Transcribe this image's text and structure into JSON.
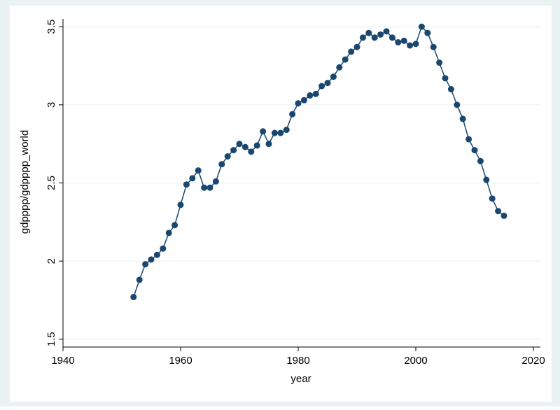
{
  "chart_data": {
    "type": "line",
    "x_label": "year",
    "y_label": "gdpppp/gdpppp_world",
    "x": [
      1952,
      1953,
      1954,
      1955,
      1956,
      1957,
      1958,
      1959,
      1960,
      1961,
      1962,
      1963,
      1964,
      1965,
      1966,
      1967,
      1968,
      1969,
      1970,
      1971,
      1972,
      1973,
      1974,
      1975,
      1976,
      1977,
      1978,
      1979,
      1980,
      1981,
      1982,
      1983,
      1984,
      1985,
      1986,
      1987,
      1988,
      1989,
      1990,
      1991,
      1992,
      1993,
      1994,
      1995,
      1996,
      1997,
      1998,
      1999,
      2000,
      2001,
      2002,
      2003,
      2004,
      2005,
      2006,
      2007,
      2008,
      2009,
      2010,
      2011,
      2012,
      2013,
      2014,
      2015
    ],
    "values": [
      1.77,
      1.88,
      1.98,
      2.01,
      2.04,
      2.08,
      2.18,
      2.23,
      2.36,
      2.49,
      2.53,
      2.58,
      2.47,
      2.47,
      2.51,
      2.62,
      2.67,
      2.71,
      2.75,
      2.73,
      2.7,
      2.74,
      2.83,
      2.75,
      2.82,
      2.82,
      2.84,
      2.94,
      3.01,
      3.03,
      3.06,
      3.07,
      3.12,
      3.14,
      3.18,
      3.24,
      3.29,
      3.34,
      3.37,
      3.43,
      3.46,
      3.43,
      3.45,
      3.47,
      3.43,
      3.4,
      3.41,
      3.38,
      3.39,
      3.5,
      3.46,
      3.37,
      3.27,
      3.17,
      3.1,
      3.0,
      2.91,
      2.78,
      2.71,
      2.64,
      2.52,
      2.4,
      2.32,
      2.29
    ],
    "color": "#1a476f",
    "xlim": [
      1940,
      2020
    ],
    "xticks": [
      1940,
      1960,
      1980,
      2000,
      2020
    ],
    "ylim": [
      1.45,
      3.55
    ],
    "yticks": [
      1.5,
      2,
      2.5,
      3,
      3.5
    ],
    "grid": true
  }
}
